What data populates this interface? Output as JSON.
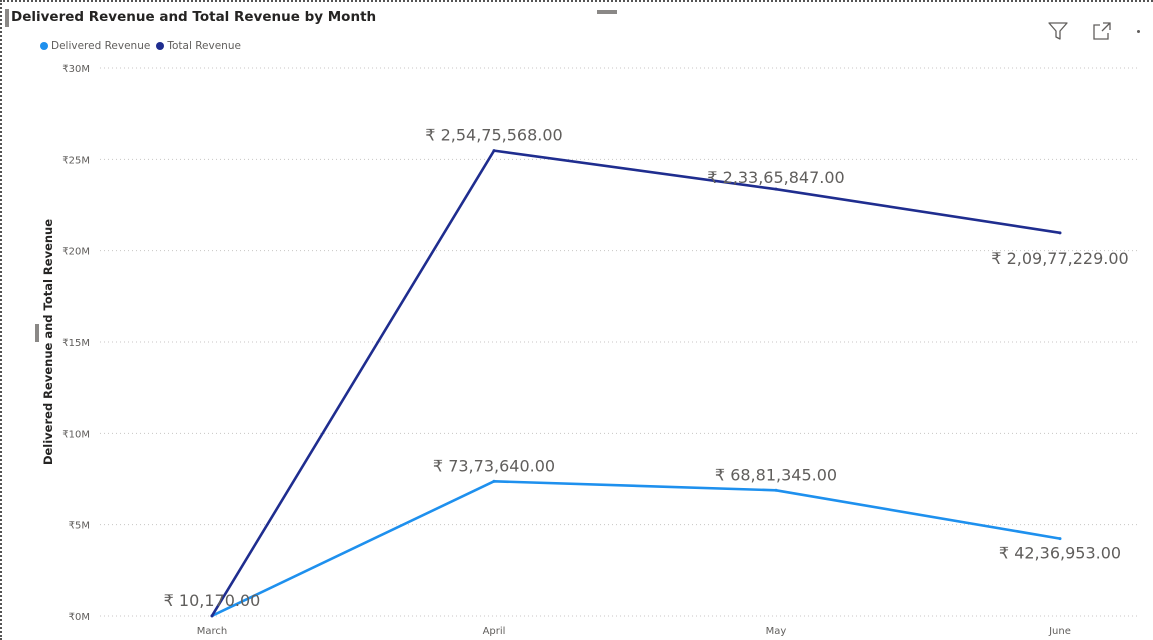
{
  "header": {
    "title": "Delivered Revenue and Total Revenue by Month",
    "filter_icon": "filter-icon",
    "focus_icon": "focus-mode-icon",
    "more_icon": "more-options-icon"
  },
  "chart_data": {
    "type": "line",
    "title": "Delivered Revenue and Total Revenue by Month",
    "xlabel": "",
    "ylabel": "Delivered Revenue and Total Revenue",
    "categories": [
      "March",
      "April",
      "May",
      "June"
    ],
    "ylim": [
      0,
      30000000
    ],
    "yticks": [
      0,
      5000000,
      10000000,
      15000000,
      20000000,
      25000000,
      30000000
    ],
    "ytick_labels": [
      "₹0M",
      "₹5M",
      "₹10M",
      "₹15M",
      "₹20M",
      "₹25M",
      "₹30M"
    ],
    "grid": true,
    "legend_position": "top-left",
    "series": [
      {
        "name": "Delivered Revenue",
        "color": "#1e90ee",
        "values": [
          10170,
          7373640,
          6881345,
          4236953
        ],
        "data_labels": [
          "₹ 10,170.00",
          "₹ 73,73,640.00",
          "₹ 68,81,345.00",
          "₹ 42,36,953.00"
        ]
      },
      {
        "name": "Total Revenue",
        "color": "#1f2d8f",
        "values": [
          10170,
          25475568,
          23365847,
          20977229
        ],
        "data_labels": [
          "",
          "₹ 2,54,75,568.00",
          "₹ 2,33,65,847.00",
          "₹ 2,09,77,229.00"
        ]
      }
    ]
  }
}
